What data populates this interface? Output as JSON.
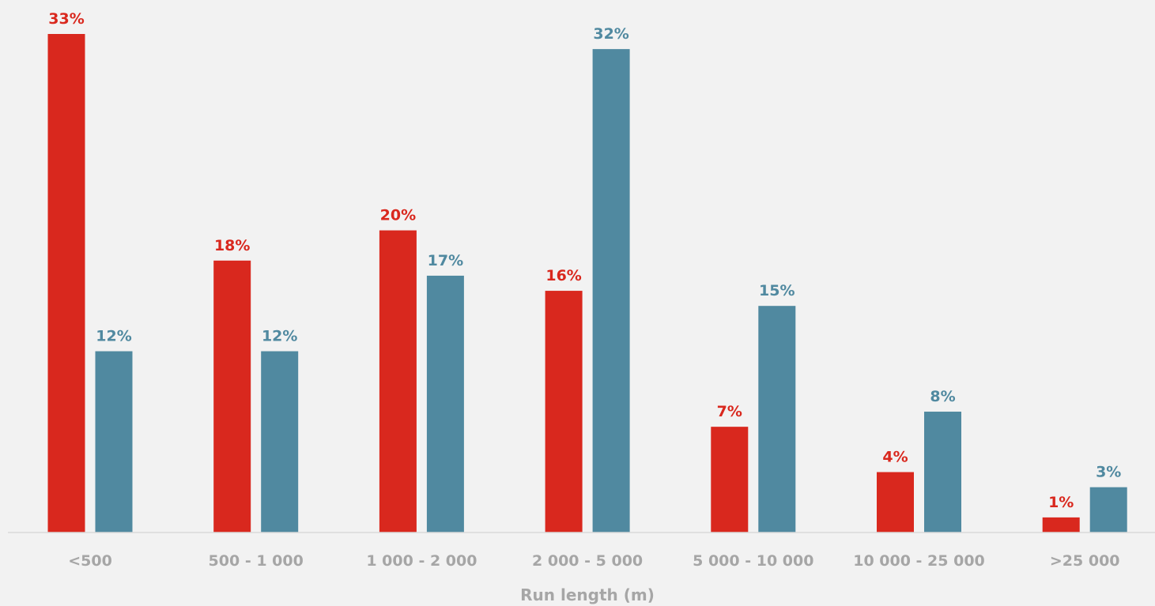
{
  "colors": {
    "background": "#f2f2f2",
    "series_a": "#d9281e",
    "series_b": "#5089a0",
    "axis_text": "#a6a6a6",
    "axis_line": "#d9d9d9"
  },
  "chart_data": {
    "type": "bar",
    "title": "",
    "xlabel": "Run length (m)",
    "ylabel": "",
    "categories": [
      "<500",
      "500 - 1 000",
      "1 000 - 2 000",
      "2 000 - 5 000",
      "5 000 - 10 000",
      "10 000 - 25 000",
      ">25 000"
    ],
    "series": [
      {
        "values": [
          33,
          18,
          20,
          16,
          7,
          4,
          1
        ],
        "labels": [
          "33%",
          "18%",
          "20%",
          "16%",
          "7%",
          "4%",
          "1%"
        ],
        "color": "#d9281e"
      },
      {
        "values": [
          12,
          12,
          17,
          32,
          15,
          8,
          3
        ],
        "labels": [
          "12%",
          "12%",
          "17%",
          "32%",
          "15%",
          "8%",
          "3%"
        ],
        "color": "#5089a0"
      }
    ],
    "ylim": [
      0,
      33
    ],
    "value_unit": "%",
    "grid": false,
    "legend": "none"
  }
}
